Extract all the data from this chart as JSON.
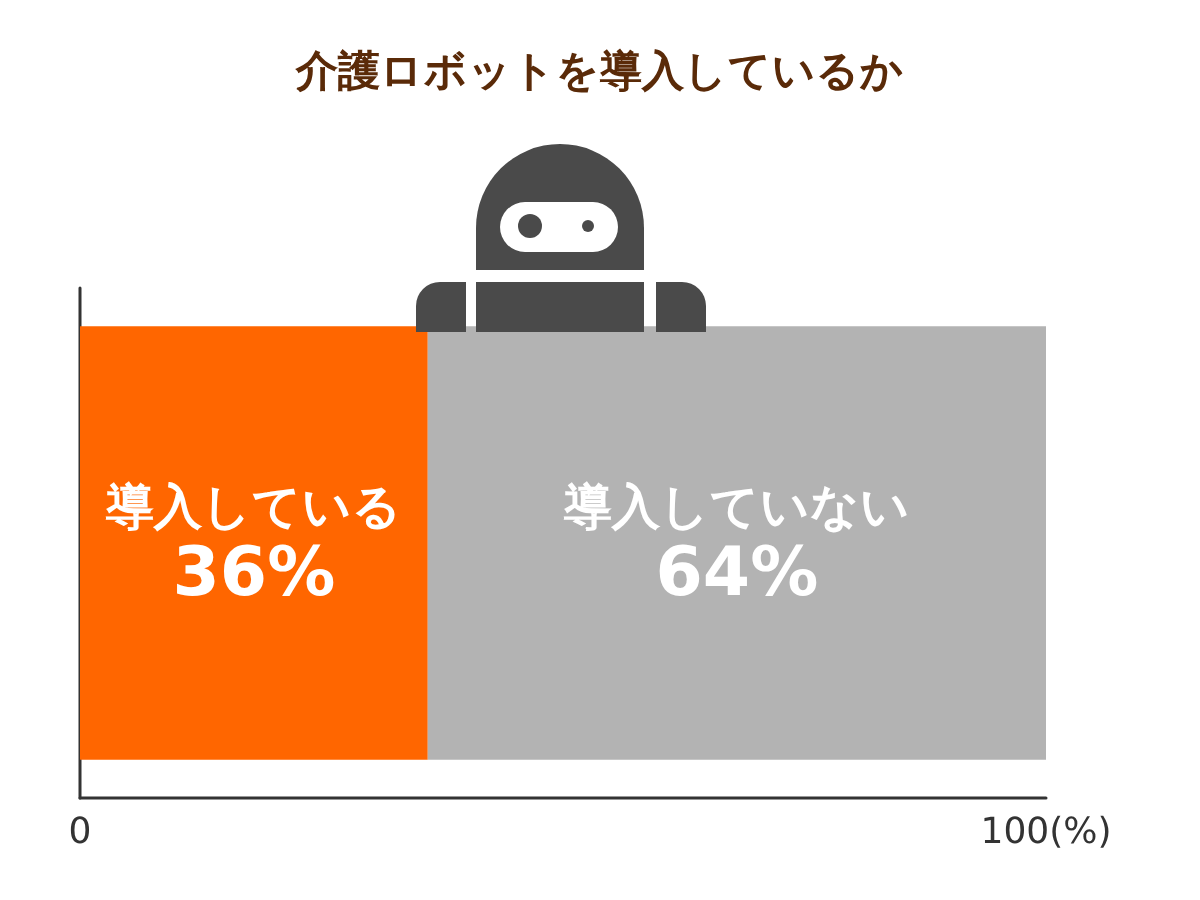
{
  "chart_data": {
    "type": "bar",
    "title": "介護ロボットを導入しているか",
    "orientation": "horizontal",
    "stacked": true,
    "categories": [
      null
    ],
    "series": [
      {
        "name": "導入している",
        "color": "#ff6600",
        "values": [
          36
        ],
        "value_labels": [
          "36%"
        ]
      },
      {
        "name": "導入していない",
        "color": "#b3b3b3",
        "values": [
          64
        ],
        "value_labels": [
          "64%"
        ]
      }
    ],
    "xlim": [
      0,
      100
    ],
    "xticks": [
      0,
      {
        "value": 100,
        "label": "100(%)"
      }
    ],
    "grid": false,
    "legend": false
  }
}
